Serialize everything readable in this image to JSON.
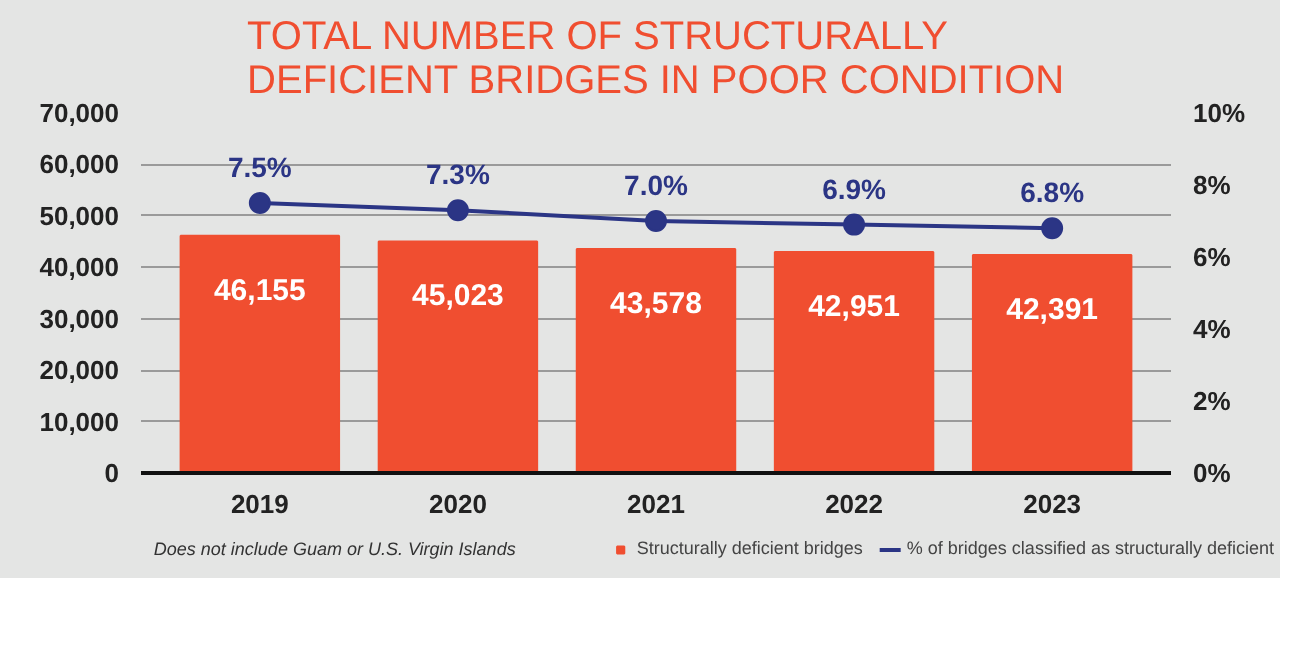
{
  "chart_data": {
    "type": "bar",
    "title": "TOTAL NUMBER OF STRUCTURALLY\nDEFICIENT BRIDGES IN POOR CONDITION",
    "categories": [
      "2019",
      "2020",
      "2021",
      "2022",
      "2023"
    ],
    "series": [
      {
        "name": "Structurally deficient bridges",
        "type": "bar",
        "color": "#f04e30",
        "values": [
          46155,
          45023,
          43578,
          42951,
          42391
        ],
        "value_labels": [
          "46,155",
          "45,023",
          "43,578",
          "42,951",
          "42,391"
        ]
      },
      {
        "name": "% of bridges classified as structurally deficient",
        "type": "line",
        "axis": "y2",
        "color": "#2b3585",
        "values": [
          7.5,
          7.3,
          7.0,
          6.9,
          6.8
        ],
        "value_labels": [
          "7.5%",
          "7.3%",
          "7.0%",
          "6.9%",
          "6.8%"
        ]
      }
    ],
    "ylim": [
      0,
      70000
    ],
    "yticks": [
      {
        "value": 0,
        "label": "0"
      },
      {
        "value": 10000,
        "label": "10,000"
      },
      {
        "value": 20000,
        "label": "20,000"
      },
      {
        "value": 30000,
        "label": "30,000"
      },
      {
        "value": 40000,
        "label": "40,000"
      },
      {
        "value": 50000,
        "label": "50,000"
      },
      {
        "value": 60000,
        "label": "60,000"
      },
      {
        "value": 70000,
        "label": "70,000"
      }
    ],
    "y2lim": [
      0,
      10
    ],
    "y2ticks": [
      {
        "value": 0,
        "label": "0%"
      },
      {
        "value": 2,
        "label": "2%"
      },
      {
        "value": 4,
        "label": "4%"
      },
      {
        "value": 6,
        "label": "6%"
      },
      {
        "value": 8,
        "label": "8%"
      },
      {
        "value": 10,
        "label": "10%"
      }
    ],
    "grid": "y",
    "legend": "bottom",
    "marker": "circle",
    "line_style": "solid",
    "annotations": [
      "Does not include Guam or U.S. Virgin Islands"
    ]
  }
}
